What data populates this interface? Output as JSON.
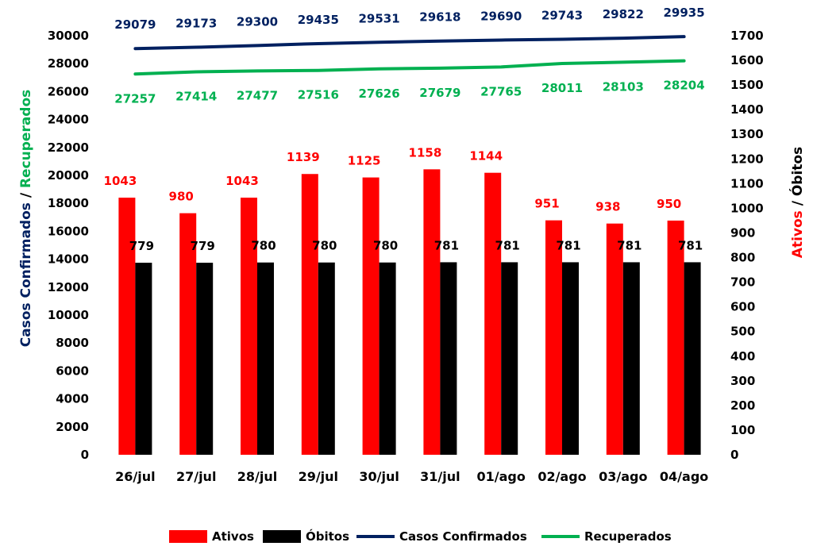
{
  "chart_data": {
    "type": "bar",
    "categories": [
      "26/jul",
      "27/jul",
      "28/jul",
      "29/jul",
      "30/jul",
      "31/jul",
      "01/ago",
      "02/ago",
      "03/ago",
      "04/ago"
    ],
    "series": [
      {
        "name": "Ativos",
        "kind": "bar",
        "axis": "right",
        "color": "#ff0000",
        "values": [
          1043,
          980,
          1043,
          1139,
          1125,
          1158,
          1144,
          951,
          938,
          950
        ]
      },
      {
        "name": "Óbitos",
        "kind": "bar",
        "axis": "right",
        "color": "#000000",
        "values": [
          779,
          779,
          780,
          780,
          780,
          781,
          781,
          781,
          781,
          781
        ]
      },
      {
        "name": "Casos Confirmados",
        "kind": "line",
        "axis": "left",
        "color": "#002060",
        "values": [
          29079,
          29173,
          29300,
          29435,
          29531,
          29618,
          29690,
          29743,
          29822,
          29935
        ]
      },
      {
        "name": "Recuperados",
        "kind": "line",
        "axis": "left",
        "color": "#00b050",
        "values": [
          27257,
          27414,
          27477,
          27516,
          27626,
          27679,
          27765,
          28011,
          28103,
          28204
        ]
      }
    ],
    "y_left": {
      "range": [
        0,
        30000
      ],
      "ticks": [
        "0",
        "2000",
        "4000",
        "6000",
        "8000",
        "10000",
        "12000",
        "14000",
        "16000",
        "18000",
        "20000",
        "22000",
        "24000",
        "26000",
        "28000",
        "30000"
      ],
      "title_parts": [
        {
          "text": "Casos Confirmados",
          "color": "#002060"
        },
        {
          "text": " / ",
          "color": "#000000"
        },
        {
          "text": "Recuperados",
          "color": "#00b050"
        }
      ]
    },
    "y_right": {
      "range": [
        0,
        1700
      ],
      "ticks": [
        "0",
        "100",
        "200",
        "300",
        "400",
        "500",
        "600",
        "700",
        "800",
        "900",
        "1000",
        "1100",
        "1200",
        "1300",
        "1400",
        "1500",
        "1600",
        "1700"
      ],
      "title_parts": [
        {
          "text": "Ativos",
          "color": "#ff0000"
        },
        {
          "text": " / ",
          "color": "#000000"
        },
        {
          "text": "Óbitos",
          "color": "#000000"
        }
      ]
    },
    "legend": {
      "position": "bottom",
      "items": [
        {
          "label": "Ativos",
          "color": "#ff0000",
          "marker": "box"
        },
        {
          "label": "Óbitos",
          "color": "#000000",
          "marker": "box"
        },
        {
          "label": "Casos Confirmados",
          "color": "#002060",
          "marker": "line"
        },
        {
          "label": "Recuperados",
          "color": "#00b050",
          "marker": "line"
        }
      ]
    },
    "grid": false
  }
}
